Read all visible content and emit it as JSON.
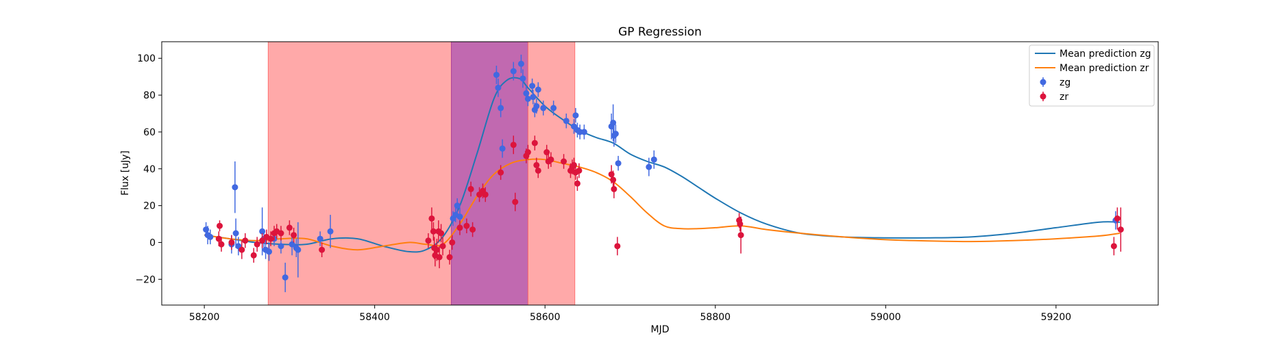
{
  "chart_data": {
    "type": "scatter",
    "title": "GP Regression",
    "xlabel": "MJD",
    "ylabel": "Flux [uJy]",
    "xlim": [
      58150,
      59320
    ],
    "ylim": [
      -34,
      109
    ],
    "xticks": [
      58200,
      58400,
      58600,
      58800,
      59000,
      59200
    ],
    "yticks": [
      -20,
      0,
      20,
      40,
      60,
      80,
      100
    ],
    "grid": false,
    "legend_position": "top-right",
    "shaded_regions": [
      {
        "x0": 58275,
        "x1": 58490,
        "color": "#ff6f6f",
        "opacity": 0.6
      },
      {
        "x0": 58490,
        "x1": 58580,
        "color": "#b1449c",
        "opacity": 0.8
      },
      {
        "x0": 58580,
        "x1": 58635,
        "color": "#ff6f6f",
        "opacity": 0.6
      }
    ],
    "lines": [
      {
        "name": "Mean prediction zg",
        "color": "#1f77b4",
        "x": [
          58200,
          58230,
          58260,
          58290,
          58320,
          58350,
          58380,
          58410,
          58440,
          58460,
          58480,
          58500,
          58520,
          58540,
          58555,
          58570,
          58580,
          58600,
          58620,
          58640,
          58660,
          58680,
          58700,
          58720,
          58740,
          58760,
          58780,
          58800,
          58830,
          58860,
          58900,
          58950,
          59000,
          59050,
          59100,
          59150,
          59200,
          59250,
          59275
        ],
        "y": [
          4,
          2,
          0,
          -1,
          -1,
          2,
          2,
          -2,
          -5,
          -4,
          3,
          20,
          48,
          78,
          88,
          89,
          84,
          74,
          67,
          61,
          57,
          54,
          48,
          44,
          41,
          36,
          30,
          24,
          16,
          10,
          5,
          3,
          2.5,
          2.5,
          3,
          5,
          8,
          11,
          11
        ]
      },
      {
        "name": "Mean prediction zr",
        "color": "#ff7f0e",
        "x": [
          58200,
          58230,
          58260,
          58290,
          58320,
          58350,
          58380,
          58410,
          58440,
          58460,
          58480,
          58500,
          58520,
          58540,
          58560,
          58580,
          58600,
          58620,
          58640,
          58660,
          58680,
          58700,
          58720,
          58740,
          58760,
          58780,
          58800,
          58830,
          58860,
          58900,
          58950,
          59000,
          59050,
          59100,
          59150,
          59200,
          59250,
          59275
        ],
        "y": [
          4,
          2,
          1,
          2,
          2,
          -2,
          -4,
          -2,
          0,
          -1,
          -1,
          10,
          25,
          37,
          43,
          45,
          45,
          43,
          41,
          38,
          33,
          25,
          16,
          9,
          7.5,
          7.5,
          8,
          9,
          7,
          5,
          3,
          1.5,
          0.8,
          0.5,
          1,
          2,
          3.5,
          5
        ]
      }
    ],
    "series": [
      {
        "name": "zg",
        "color": "#4169e1",
        "points": [
          {
            "x": 58202,
            "y": 7,
            "err": 4
          },
          {
            "x": 58204,
            "y": 4,
            "err": 5
          },
          {
            "x": 58207,
            "y": 3,
            "err": 4
          },
          {
            "x": 58232,
            "y": -1,
            "err": 5
          },
          {
            "x": 58236,
            "y": 30,
            "err": 14
          },
          {
            "x": 58237,
            "y": 5,
            "err": 8
          },
          {
            "x": 58240,
            "y": -2,
            "err": 5
          },
          {
            "x": 58268,
            "y": 6,
            "err": 13
          },
          {
            "x": 58270,
            "y": 2,
            "err": 5
          },
          {
            "x": 58272,
            "y": -4,
            "err": 5
          },
          {
            "x": 58276,
            "y": -5,
            "err": 5
          },
          {
            "x": 58282,
            "y": 2,
            "err": 4
          },
          {
            "x": 58290,
            "y": -2,
            "err": 4
          },
          {
            "x": 58295,
            "y": -19,
            "err": 8
          },
          {
            "x": 58303,
            "y": -1,
            "err": 6
          },
          {
            "x": 58308,
            "y": -3,
            "err": 5
          },
          {
            "x": 58310,
            "y": -4,
            "err": 15
          },
          {
            "x": 58336,
            "y": 2,
            "err": 4
          },
          {
            "x": 58348,
            "y": 6,
            "err": 9
          },
          {
            "x": 58492,
            "y": 13,
            "err": 4
          },
          {
            "x": 58495,
            "y": 15,
            "err": 4
          },
          {
            "x": 58497,
            "y": 20,
            "err": 4
          },
          {
            "x": 58500,
            "y": 14,
            "err": 5
          },
          {
            "x": 58543,
            "y": 91,
            "err": 5
          },
          {
            "x": 58545,
            "y": 84,
            "err": 5
          },
          {
            "x": 58548,
            "y": 73,
            "err": 5
          },
          {
            "x": 58550,
            "y": 51,
            "err": 5
          },
          {
            "x": 58563,
            "y": 93,
            "err": 5
          },
          {
            "x": 58572,
            "y": 97,
            "err": 5
          },
          {
            "x": 58574,
            "y": 89,
            "err": 5
          },
          {
            "x": 58578,
            "y": 81,
            "err": 4
          },
          {
            "x": 58580,
            "y": 78,
            "err": 4
          },
          {
            "x": 58585,
            "y": 85,
            "err": 4
          },
          {
            "x": 58586,
            "y": 79,
            "err": 4
          },
          {
            "x": 58588,
            "y": 72,
            "err": 4
          },
          {
            "x": 58590,
            "y": 74,
            "err": 4
          },
          {
            "x": 58592,
            "y": 83,
            "err": 4
          },
          {
            "x": 58598,
            "y": 73,
            "err": 4
          },
          {
            "x": 58610,
            "y": 73,
            "err": 4
          },
          {
            "x": 58625,
            "y": 66,
            "err": 4
          },
          {
            "x": 58634,
            "y": 63,
            "err": 4
          },
          {
            "x": 58636,
            "y": 69,
            "err": 4
          },
          {
            "x": 58638,
            "y": 61,
            "err": 4
          },
          {
            "x": 58641,
            "y": 60,
            "err": 4
          },
          {
            "x": 58646,
            "y": 60,
            "err": 4
          },
          {
            "x": 58678,
            "y": 63,
            "err": 7
          },
          {
            "x": 58680,
            "y": 65,
            "err": 10
          },
          {
            "x": 58681,
            "y": 58,
            "err": 6
          },
          {
            "x": 58683,
            "y": 59,
            "err": 5
          },
          {
            "x": 58686,
            "y": 43,
            "err": 4
          },
          {
            "x": 58722,
            "y": 41,
            "err": 5
          },
          {
            "x": 58728,
            "y": 45,
            "err": 5
          },
          {
            "x": 59270,
            "y": 12,
            "err": 5
          }
        ]
      },
      {
        "name": "zr",
        "color": "#dc143c",
        "points": [
          {
            "x": 58218,
            "y": 9,
            "err": 3
          },
          {
            "x": 58217,
            "y": 2,
            "err": 4
          },
          {
            "x": 58220,
            "y": -1,
            "err": 4
          },
          {
            "x": 58232,
            "y": 0,
            "err": 4
          },
          {
            "x": 58244,
            "y": -4,
            "err": 5
          },
          {
            "x": 58248,
            "y": 1,
            "err": 4
          },
          {
            "x": 58258,
            "y": -7,
            "err": 4
          },
          {
            "x": 58262,
            "y": -1,
            "err": 4
          },
          {
            "x": 58268,
            "y": 1,
            "err": 4
          },
          {
            "x": 58273,
            "y": 3,
            "err": 4
          },
          {
            "x": 58278,
            "y": 2,
            "err": 4
          },
          {
            "x": 58282,
            "y": 5,
            "err": 4
          },
          {
            "x": 58285,
            "y": 6,
            "err": 4
          },
          {
            "x": 58290,
            "y": 5,
            "err": 4
          },
          {
            "x": 58300,
            "y": 8,
            "err": 4
          },
          {
            "x": 58305,
            "y": 4,
            "err": 4
          },
          {
            "x": 58338,
            "y": -4,
            "err": 4
          },
          {
            "x": 58463,
            "y": 1,
            "err": 4
          },
          {
            "x": 58467,
            "y": 13,
            "err": 6
          },
          {
            "x": 58469,
            "y": 6,
            "err": 5
          },
          {
            "x": 58470,
            "y": -3,
            "err": 6
          },
          {
            "x": 58471,
            "y": -7,
            "err": 6
          },
          {
            "x": 58473,
            "y": -4,
            "err": 6
          },
          {
            "x": 58475,
            "y": 6,
            "err": 6
          },
          {
            "x": 58476,
            "y": -8,
            "err": 6
          },
          {
            "x": 58478,
            "y": 5,
            "err": 5
          },
          {
            "x": 58480,
            "y": -2,
            "err": 5
          },
          {
            "x": 58488,
            "y": -8,
            "err": 4
          },
          {
            "x": 58491,
            "y": 0,
            "err": 4
          },
          {
            "x": 58500,
            "y": 8,
            "err": 4
          },
          {
            "x": 58508,
            "y": 9,
            "err": 4
          },
          {
            "x": 58513,
            "y": 29,
            "err": 4
          },
          {
            "x": 58515,
            "y": 7,
            "err": 4
          },
          {
            "x": 58523,
            "y": 26,
            "err": 4
          },
          {
            "x": 58527,
            "y": 28,
            "err": 4
          },
          {
            "x": 58530,
            "y": 26,
            "err": 4
          },
          {
            "x": 58548,
            "y": 38,
            "err": 4
          },
          {
            "x": 58563,
            "y": 53,
            "err": 5
          },
          {
            "x": 58565,
            "y": 22,
            "err": 5
          },
          {
            "x": 58578,
            "y": 47,
            "err": 4
          },
          {
            "x": 58580,
            "y": 49,
            "err": 4
          },
          {
            "x": 58588,
            "y": 54,
            "err": 4
          },
          {
            "x": 58590,
            "y": 42,
            "err": 4
          },
          {
            "x": 58592,
            "y": 39,
            "err": 4
          },
          {
            "x": 58602,
            "y": 49,
            "err": 4
          },
          {
            "x": 58604,
            "y": 44,
            "err": 4
          },
          {
            "x": 58607,
            "y": 45,
            "err": 4
          },
          {
            "x": 58622,
            "y": 44,
            "err": 4
          },
          {
            "x": 58630,
            "y": 39,
            "err": 4
          },
          {
            "x": 58632,
            "y": 41,
            "err": 4
          },
          {
            "x": 58634,
            "y": 42,
            "err": 4
          },
          {
            "x": 58636,
            "y": 38,
            "err": 4
          },
          {
            "x": 58638,
            "y": 32,
            "err": 4
          },
          {
            "x": 58640,
            "y": 39,
            "err": 4
          },
          {
            "x": 58678,
            "y": 37,
            "err": 5
          },
          {
            "x": 58680,
            "y": 34,
            "err": 5
          },
          {
            "x": 58681,
            "y": 29,
            "err": 5
          },
          {
            "x": 58685,
            "y": -2,
            "err": 5
          },
          {
            "x": 58828,
            "y": 12,
            "err": 4
          },
          {
            "x": 58829,
            "y": 10,
            "err": 4
          },
          {
            "x": 58830,
            "y": 4,
            "err": 10
          },
          {
            "x": 59268,
            "y": -2,
            "err": 5
          },
          {
            "x": 59272,
            "y": 13,
            "err": 6
          },
          {
            "x": 59276,
            "y": 7,
            "err": 12
          }
        ]
      }
    ],
    "legend": [
      "Mean prediction zg",
      "Mean prediction zr",
      "zg",
      "zr"
    ]
  }
}
